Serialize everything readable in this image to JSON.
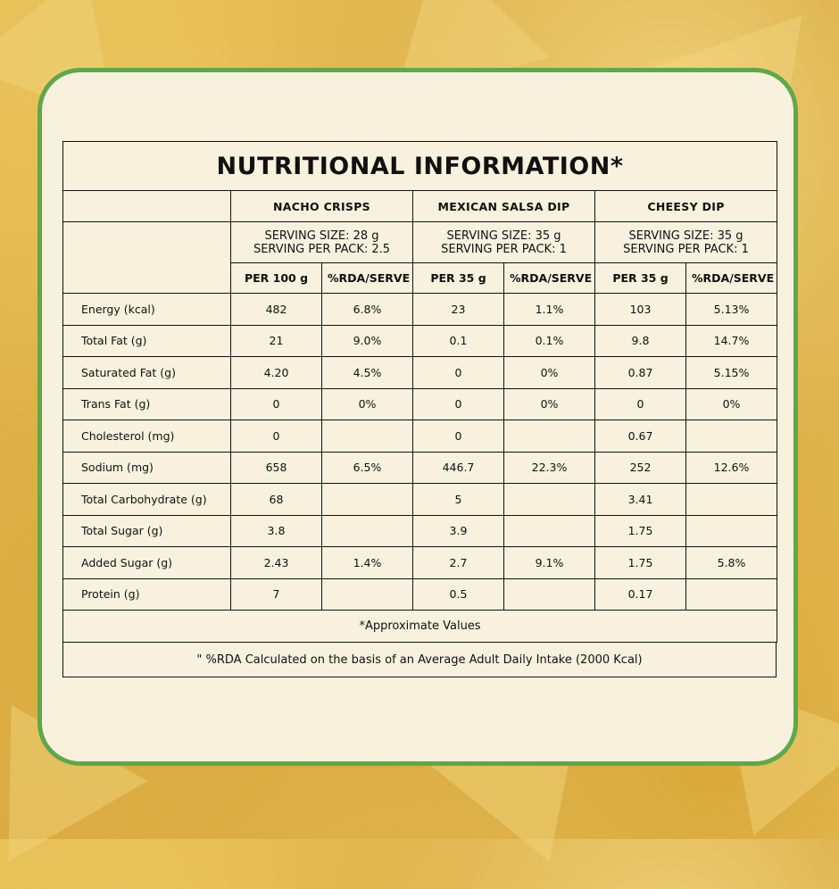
{
  "title": "NUTRITIONAL INFORMATION*",
  "products": [
    {
      "name": "NACHO CRISPS",
      "serving_size": "SERVING SIZE: 28 g",
      "serving_per_pack": "SERVING PER PACK: 2.5",
      "col1": "PER 100 g",
      "col2": "%RDA/SERVE"
    },
    {
      "name": "MEXICAN SALSA DIP",
      "serving_size": "SERVING SIZE: 35 g",
      "serving_per_pack": "SERVING PER PACK: 1",
      "col1": "PER 35 g",
      "col2": "%RDA/SERVE"
    },
    {
      "name": "CHEESY  DIP",
      "serving_size": "SERVING SIZE: 35 g",
      "serving_per_pack": "SERVING PER PACK: 1",
      "col1": "PER 35 g",
      "col2": "%RDA/SERVE"
    }
  ],
  "rows": [
    {
      "name": "Energy (kcal)",
      "values": [
        "482",
        "6.8%",
        "23",
        "1.1%",
        "103",
        "5.13%"
      ]
    },
    {
      "name": "Total Fat (g)",
      "values": [
        "21",
        "9.0%",
        "0.1",
        "0.1%",
        "9.8",
        "14.7%"
      ]
    },
    {
      "name": "Saturated Fat (g)",
      "values": [
        "4.20",
        "4.5%",
        "0",
        "0%",
        "0.87",
        "5.15%"
      ]
    },
    {
      "name": "Trans Fat (g)",
      "values": [
        "0",
        "0%",
        "0",
        "0%",
        "0",
        "0%"
      ]
    },
    {
      "name": "Cholesterol (mg)",
      "values": [
        "0",
        "",
        "0",
        "",
        "0.67",
        ""
      ]
    },
    {
      "name": "Sodium (mg)",
      "values": [
        "658",
        "6.5%",
        "446.7",
        "22.3%",
        "252",
        "12.6%"
      ]
    },
    {
      "name": "Total Carbohydrate  (g)",
      "values": [
        "68",
        "",
        "5",
        "",
        "3.41",
        ""
      ]
    },
    {
      "name": "Total Sugar (g)",
      "values": [
        "3.8",
        "",
        "3.9",
        "",
        "1.75",
        ""
      ]
    },
    {
      "name": "Added Sugar (g)",
      "values": [
        "2.43",
        "1.4%",
        "2.7",
        "9.1%",
        "1.75",
        "5.8%"
      ]
    },
    {
      "name": "Protein (g)",
      "values": [
        "7",
        "",
        "0.5",
        "",
        "0.17",
        ""
      ]
    }
  ],
  "notes": {
    "approx": "*Approximate Values",
    "rda": "\" %RDA Calculated on the basis of an Average Adult Daily Intake (2000 Kcal)"
  },
  "colors": {
    "border_green": "#5fa84a",
    "card_bg": "#f7f1de",
    "chip_yellow": "#e2b64c"
  }
}
